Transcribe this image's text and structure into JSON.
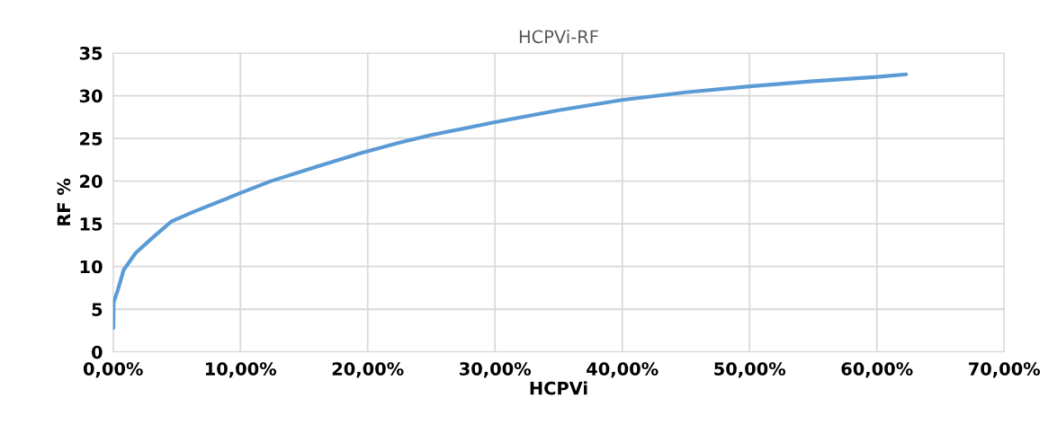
{
  "chart_data": {
    "type": "line",
    "title": "HCPVi-RF",
    "xlabel": "HCPVi",
    "ylabel": "RF %",
    "xlim": [
      0,
      70
    ],
    "ylim": [
      0,
      35
    ],
    "xticks": [
      {
        "value": 0,
        "label": "0,00%"
      },
      {
        "value": 10,
        "label": "10,00%"
      },
      {
        "value": 20,
        "label": "20,00%"
      },
      {
        "value": 30,
        "label": "30,00%"
      },
      {
        "value": 40,
        "label": "40,00%"
      },
      {
        "value": 50,
        "label": "50,00%"
      },
      {
        "value": 60,
        "label": "60,00%"
      },
      {
        "value": 70,
        "label": "70,00%"
      }
    ],
    "yticks": [
      0,
      5,
      10,
      15,
      20,
      25,
      30,
      35
    ],
    "grid": true,
    "marker": "none",
    "line_style": "solid",
    "series": [
      {
        "color": "#5b9bd5",
        "x": [
          0.02,
          0.04,
          0.36,
          0.83,
          1.78,
          3.2,
          4.6,
          6.3,
          10,
          12.4,
          16,
          19.5,
          22.5,
          25,
          30,
          35,
          40,
          45,
          50,
          55,
          60,
          62.3
        ],
        "values": [
          2.8,
          5.8,
          7.2,
          9.6,
          11.6,
          13.5,
          15.3,
          16.4,
          18.6,
          20.0,
          21.7,
          23.3,
          24.5,
          25.4,
          26.9,
          28.3,
          29.5,
          30.4,
          31.1,
          31.7,
          32.2,
          32.5
        ]
      }
    ]
  }
}
